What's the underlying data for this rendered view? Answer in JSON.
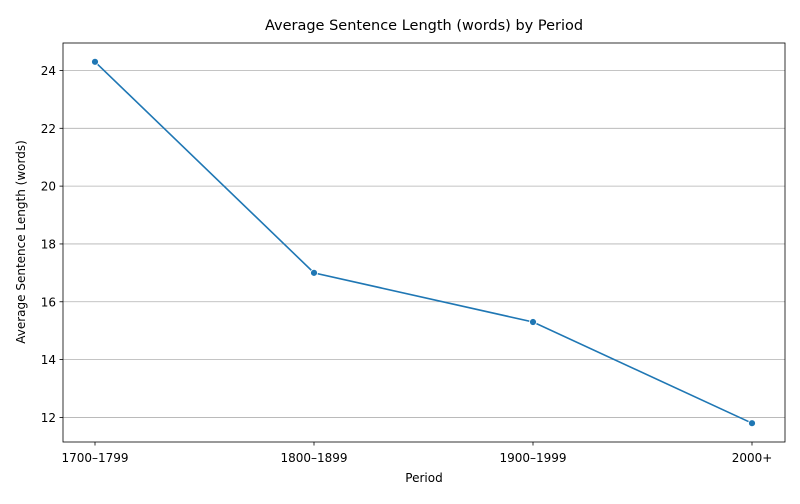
{
  "chart_data": {
    "type": "line",
    "title": "Average Sentence Length (words) by Period",
    "xlabel": "Period",
    "ylabel": "Average Sentence Length (words)",
    "categories": [
      "1700–1799",
      "1800–1899",
      "1900–1999",
      "2000+"
    ],
    "series": [
      {
        "values": [
          24.3,
          17.0,
          15.3,
          11.8
        ],
        "color": "#1f77b4"
      }
    ],
    "ylim": [
      11.15,
      24.95
    ],
    "yticks": [
      12,
      14,
      16,
      18,
      20,
      22,
      24
    ],
    "grid": "y",
    "legend": "none",
    "marker": "circle"
  }
}
